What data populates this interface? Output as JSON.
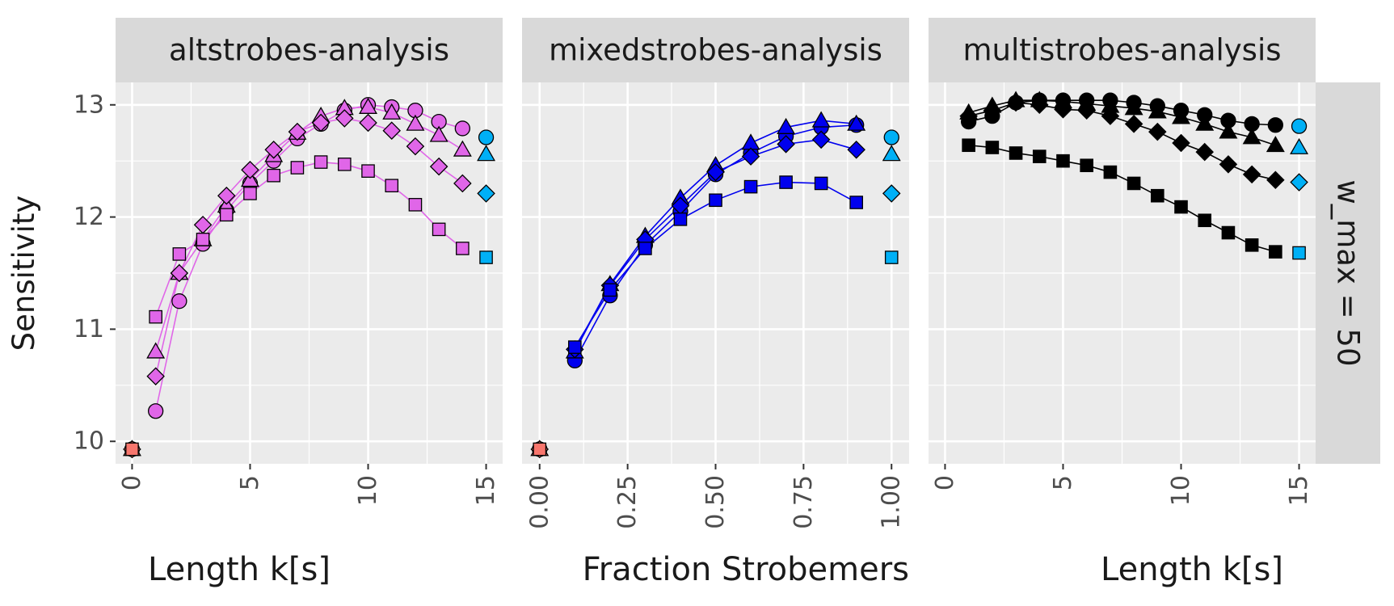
{
  "ylabel": "Sensitivity",
  "facet_row_label": "w_max = 50",
  "colors": {
    "panel_bg": "#ebebeb",
    "strip_bg": "#d9d9d9",
    "grid": "#ffffff",
    "text": "#1a1a1a",
    "tick_text": "#4d4d4d",
    "baseline_point": "#f8766d",
    "reference_point": "#00b0f6",
    "altstrobes": "#e066e8",
    "mixedstrobes": "#0000ee",
    "multistrobes": "#000000"
  },
  "chart_data": [
    {
      "type": "line",
      "strip": "altstrobes-analysis",
      "xlabel": "Length k[s]",
      "ylabel": "Sensitivity",
      "xlim": [
        -0.7,
        15.7
      ],
      "ylim": [
        9.8,
        13.2
      ],
      "x_ticks": [
        0,
        5,
        10,
        15
      ],
      "x_tick_labels": [
        "0",
        "5",
        "10",
        "15"
      ],
      "y_ticks": [
        10,
        11,
        12,
        13
      ],
      "y_tick_labels": [
        "10",
        "11",
        "12",
        "13"
      ],
      "grid": true,
      "line_color": "#e066e8",
      "series": [
        {
          "shape": "circle",
          "x": [
            1,
            2,
            3,
            4,
            5,
            6,
            7,
            8,
            9,
            10,
            11,
            12,
            13,
            14
          ],
          "values": [
            10.27,
            11.25,
            11.76,
            12.06,
            12.3,
            12.5,
            12.7,
            12.83,
            12.95,
            13.0,
            12.98,
            12.95,
            12.85,
            12.79
          ]
        },
        {
          "shape": "triangle",
          "x": [
            1,
            2,
            3,
            4,
            5,
            6,
            7,
            8,
            9,
            10,
            11,
            12,
            13,
            14
          ],
          "values": [
            10.8,
            11.5,
            11.8,
            12.1,
            12.33,
            12.55,
            12.75,
            12.9,
            12.97,
            12.98,
            12.93,
            12.83,
            12.73,
            12.6
          ]
        },
        {
          "shape": "diamond",
          "x": [
            1,
            2,
            3,
            4,
            5,
            6,
            7,
            8,
            9,
            10,
            11,
            12,
            13,
            14
          ],
          "values": [
            10.58,
            11.5,
            11.93,
            12.19,
            12.42,
            12.6,
            12.76,
            12.84,
            12.88,
            12.84,
            12.77,
            12.63,
            12.45,
            12.3
          ]
        },
        {
          "shape": "square",
          "x": [
            1,
            2,
            3,
            4,
            5,
            6,
            7,
            8,
            9,
            10,
            11,
            12,
            13,
            14
          ],
          "values": [
            11.11,
            11.67,
            11.8,
            12.02,
            12.21,
            12.37,
            12.44,
            12.49,
            12.47,
            12.41,
            12.28,
            12.11,
            11.89,
            11.72
          ]
        }
      ],
      "baseline_points": [
        {
          "shape": "circle",
          "x": 0,
          "y": 9.93
        },
        {
          "shape": "triangle",
          "x": 0,
          "y": 9.93
        },
        {
          "shape": "diamond",
          "x": 0,
          "y": 9.93
        },
        {
          "shape": "square",
          "x": 0,
          "y": 9.93
        }
      ],
      "reference_points": [
        {
          "shape": "circle",
          "x": 15,
          "y": 12.71
        },
        {
          "shape": "triangle",
          "x": 15,
          "y": 12.56
        },
        {
          "shape": "diamond",
          "x": 15,
          "y": 12.21
        },
        {
          "shape": "square",
          "x": 15,
          "y": 11.64
        }
      ]
    },
    {
      "type": "line",
      "strip": "mixedstrobes-analysis",
      "xlabel": "Fraction Strobemers",
      "ylabel": "Sensitivity",
      "xlim": [
        -0.05,
        1.05
      ],
      "ylim": [
        9.8,
        13.2
      ],
      "x_ticks": [
        0,
        0.25,
        0.5,
        0.75,
        1.0
      ],
      "x_tick_labels": [
        "0.00",
        "0.25",
        "0.50",
        "0.75",
        "1.00"
      ],
      "y_ticks": [
        10,
        11,
        12,
        13
      ],
      "y_tick_labels": [
        "10",
        "11",
        "12",
        "13"
      ],
      "grid": true,
      "line_color": "#0000ee",
      "series": [
        {
          "shape": "circle",
          "x": [
            0.1,
            0.2,
            0.3,
            0.4,
            0.5,
            0.6,
            0.7,
            0.8,
            0.9
          ],
          "values": [
            10.72,
            11.3,
            11.75,
            12.05,
            12.38,
            12.57,
            12.72,
            12.8,
            12.82
          ]
        },
        {
          "shape": "triangle",
          "x": [
            0.1,
            0.2,
            0.3,
            0.4,
            0.5,
            0.6,
            0.7,
            0.8,
            0.9
          ],
          "values": [
            10.8,
            11.4,
            11.83,
            12.17,
            12.46,
            12.66,
            12.8,
            12.86,
            12.83
          ]
        },
        {
          "shape": "diamond",
          "x": [
            0.1,
            0.2,
            0.3,
            0.4,
            0.5,
            0.6,
            0.7,
            0.8,
            0.9
          ],
          "values": [
            10.82,
            11.39,
            11.8,
            12.1,
            12.4,
            12.54,
            12.65,
            12.69,
            12.6
          ]
        },
        {
          "shape": "square",
          "x": [
            0.1,
            0.2,
            0.3,
            0.4,
            0.5,
            0.6,
            0.7,
            0.8,
            0.9
          ],
          "values": [
            10.84,
            11.35,
            11.72,
            11.98,
            12.15,
            12.27,
            12.31,
            12.3,
            12.13
          ]
        }
      ],
      "baseline_points": [
        {
          "shape": "circle",
          "x": 0,
          "y": 9.93
        },
        {
          "shape": "triangle",
          "x": 0,
          "y": 9.93
        },
        {
          "shape": "diamond",
          "x": 0,
          "y": 9.93
        },
        {
          "shape": "square",
          "x": 0,
          "y": 9.93
        }
      ],
      "reference_points": [
        {
          "shape": "circle",
          "x": 1.0,
          "y": 12.71
        },
        {
          "shape": "triangle",
          "x": 1.0,
          "y": 12.56
        },
        {
          "shape": "diamond",
          "x": 1.0,
          "y": 12.21
        },
        {
          "shape": "square",
          "x": 1.0,
          "y": 11.64
        }
      ]
    },
    {
      "type": "line",
      "strip": "multistrobes-analysis",
      "xlabel": "Length k[s]",
      "ylabel": "Sensitivity",
      "xlim": [
        -0.7,
        15.7
      ],
      "ylim": [
        9.8,
        13.2
      ],
      "x_ticks": [
        0,
        5,
        10,
        15
      ],
      "x_tick_labels": [
        "0",
        "5",
        "10",
        "15"
      ],
      "y_ticks": [
        10,
        11,
        12,
        13
      ],
      "y_tick_labels": [
        "10",
        "11",
        "12",
        "13"
      ],
      "grid": true,
      "line_color": "#000000",
      "series": [
        {
          "shape": "circle",
          "x": [
            1,
            2,
            3,
            4,
            5,
            6,
            7,
            8,
            9,
            10,
            11,
            12,
            13,
            14
          ],
          "values": [
            12.85,
            12.9,
            13.02,
            13.04,
            13.04,
            13.04,
            13.04,
            13.02,
            12.99,
            12.95,
            12.91,
            12.86,
            12.83,
            12.82
          ]
        },
        {
          "shape": "triangle",
          "x": [
            1,
            2,
            3,
            4,
            5,
            6,
            7,
            8,
            9,
            10,
            11,
            12,
            13,
            14
          ],
          "values": [
            12.93,
            12.99,
            13.04,
            13.04,
            13.03,
            13.01,
            12.99,
            12.97,
            12.94,
            12.89,
            12.83,
            12.76,
            12.71,
            12.64
          ]
        },
        {
          "shape": "diamond",
          "x": [
            1,
            2,
            3,
            4,
            5,
            6,
            7,
            8,
            9,
            10,
            11,
            12,
            13,
            14
          ],
          "values": [
            12.9,
            12.95,
            13.02,
            13.0,
            12.96,
            12.95,
            12.9,
            12.83,
            12.76,
            12.66,
            12.58,
            12.47,
            12.38,
            12.33
          ]
        },
        {
          "shape": "square",
          "x": [
            1,
            2,
            3,
            4,
            5,
            6,
            7,
            8,
            9,
            10,
            11,
            12,
            13,
            14
          ],
          "values": [
            12.64,
            12.62,
            12.57,
            12.54,
            12.5,
            12.46,
            12.4,
            12.3,
            12.19,
            12.09,
            11.97,
            11.86,
            11.75,
            11.69
          ]
        }
      ],
      "baseline_points": [],
      "reference_points": [
        {
          "shape": "circle",
          "x": 15,
          "y": 12.81
        },
        {
          "shape": "triangle",
          "x": 15,
          "y": 12.62
        },
        {
          "shape": "diamond",
          "x": 15,
          "y": 12.31
        },
        {
          "shape": "square",
          "x": 15,
          "y": 11.68
        }
      ]
    }
  ]
}
